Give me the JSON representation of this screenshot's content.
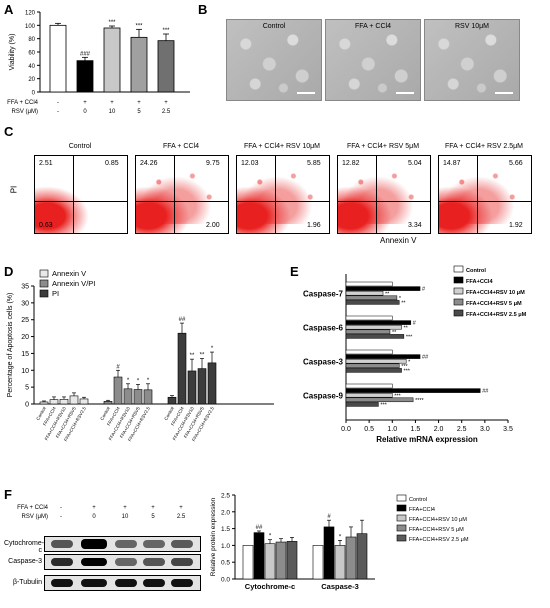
{
  "panels": {
    "A": "A",
    "B": "B",
    "C": "C",
    "D": "D",
    "E": "E",
    "F": "F"
  },
  "panel_a": {
    "ylabel": "Viability (%)",
    "yticks": [
      "0",
      "20",
      "40",
      "60",
      "80",
      "100",
      "120"
    ],
    "row1_label": "FFA + CCl4",
    "row2_label": "RSV (μM)",
    "row1_marks": [
      "-",
      "+",
      "+",
      "+",
      "+"
    ],
    "row2_marks": [
      "-",
      "0",
      "10",
      "5",
      "2.5"
    ],
    "sig": [
      "",
      "###",
      "***",
      "***",
      "***"
    ]
  },
  "panel_b": {
    "titles": [
      "Control",
      "FFA + CCl4",
      "RSV 10μM"
    ]
  },
  "panel_c": {
    "titles": [
      "Control",
      "FFA + CCl4",
      "FFA + CCl4+ RSV 10μM",
      "FFA + CCl4+ RSV 5μM",
      "FFA + CCl4+ RSV 2.5μM"
    ],
    "quadrants": [
      [
        "2.51",
        "0.85",
        "0.63",
        ""
      ],
      [
        "24.26",
        "9.75",
        "",
        "2.00"
      ],
      [
        "12.03",
        "5.85",
        "",
        "1.96"
      ],
      [
        "12.82",
        "5.04",
        "",
        "3.34"
      ],
      [
        "14.87",
        "5.66",
        "",
        "1.92"
      ]
    ],
    "ylabel": "PI",
    "xlabel": "Annexin V"
  },
  "panel_d": {
    "ylabel": "Percentage of Apoptosis cells (%)",
    "yticks": [
      "0",
      "5",
      "10",
      "15",
      "20",
      "25",
      "30",
      "35"
    ],
    "legend": [
      "Annexin V",
      "Annexin V/PI",
      "PI"
    ],
    "xlabels": [
      "Control",
      "FFA+CCl4",
      "FFA+CCl4+RSV10",
      "FFA+CCl4+RSV5",
      "FFA+CCl4+RSV2.5"
    ],
    "sig_mid": [
      "",
      "#",
      "*",
      "*",
      "*"
    ],
    "sig_pi": [
      "",
      "##",
      "**",
      "**",
      "*"
    ]
  },
  "panel_e": {
    "xlabel": "Relative mRNA expression",
    "xticks": [
      "0.0",
      "0.5",
      "1.0",
      "1.5",
      "2.0",
      "2.5",
      "3.0",
      "3.5"
    ],
    "legend": [
      "Control",
      "FFA+CCl4",
      "FFA+CCl4+RSV 10 μM",
      "FFA+CCl4+RSV 5 μM",
      "FFA+CCl4+RSV 2.5 μM"
    ],
    "sig": [
      [
        "",
        "#",
        "**",
        "*",
        "**"
      ],
      [
        "",
        "#",
        "**",
        "**",
        "***"
      ],
      [
        "",
        "##",
        "*",
        "***",
        "***"
      ],
      [
        "",
        "##",
        "***",
        "****",
        "***"
      ]
    ]
  },
  "panel_f": {
    "blot_header_row1": "FFA + CCl4",
    "blot_header_row2": "RSV (μM)",
    "row1_marks": [
      "-",
      "+",
      "+",
      "+",
      "+"
    ],
    "row2_marks": [
      "-",
      "0",
      "10",
      "5",
      "2.5"
    ],
    "blot_rows": [
      "Cytochrome-c",
      "Caspase-3",
      "β-Tubulin"
    ],
    "ylabel": "Relative protein expression",
    "yticks": [
      "0.0",
      "0.5",
      "1.0",
      "1.5",
      "2.0",
      "2.5"
    ],
    "legend": [
      "Control",
      "FFA+CCl4",
      "FFA+CCl4+RSV 10 μM",
      "FFA+CCl4+RSV 5 μM",
      "FFA+CCl4+RSV 2.5 μM"
    ],
    "sig": [
      [
        "",
        "##",
        "*",
        "",
        ""
      ],
      [
        "",
        "#",
        "*",
        "",
        ""
      ]
    ]
  },
  "chart_data": [
    {
      "type": "bar",
      "panel": "A",
      "categories": [
        "-/-",
        "+/0",
        "+/10",
        "+/5",
        "+/2.5"
      ],
      "values": [
        100,
        47,
        96,
        82,
        77
      ],
      "errors": [
        3,
        5,
        3,
        12,
        10
      ],
      "colors": [
        "#ffffff",
        "#000000",
        "#c8c8c8",
        "#a0a0a0",
        "#707070"
      ],
      "ylim": [
        0,
        120
      ],
      "ylabel": "Viability (%)"
    },
    {
      "type": "bar",
      "panel": "D",
      "categories": [
        "Control",
        "FFA+CCl4",
        "FFA+CCl4+RSV10",
        "FFA+CCl4+RSV5",
        "FFA+CCl4+RSV2.5"
      ],
      "series": [
        {
          "name": "Annexin V",
          "values": [
            0.6,
            1.3,
            1.4,
            2.4,
            1.5
          ],
          "errors": [
            0.3,
            0.8,
            0.7,
            0.9,
            0.5
          ]
        },
        {
          "name": "Annexin V/PI",
          "values": [
            0.8,
            8.0,
            4.5,
            4.3,
            4.2
          ],
          "errors": [
            0.3,
            2.0,
            1.5,
            1.5,
            1.8
          ]
        },
        {
          "name": "PI",
          "values": [
            2.0,
            21.0,
            9.8,
            10.5,
            12.2
          ],
          "errors": [
            0.5,
            3.0,
            3.5,
            3.0,
            3.2
          ]
        }
      ],
      "colors": [
        "#e8e8e8",
        "#8c8c8c",
        "#3c3c3c"
      ],
      "ylim": [
        0,
        35
      ],
      "ylabel": "Percentage of Apoptosis cells (%)"
    },
    {
      "type": "bar",
      "panel": "E",
      "orientation": "horizontal",
      "categories": [
        "Caspase-7",
        "Caspase-6",
        "Caspase-3",
        "Caspase-9"
      ],
      "series": [
        {
          "name": "Control",
          "values": [
            1.0,
            1.0,
            1.0,
            1.0
          ]
        },
        {
          "name": "FFA+CCl4",
          "values": [
            1.6,
            1.4,
            1.6,
            2.9
          ]
        },
        {
          "name": "FFA+CCl4+RSV 10 μM",
          "values": [
            0.8,
            1.2,
            1.3,
            1.0
          ]
        },
        {
          "name": "FFA+CCl4+RSV 5 μM",
          "values": [
            1.1,
            0.95,
            1.15,
            1.45
          ]
        },
        {
          "name": "FFA+CCl4+RSV 2.5 μM",
          "values": [
            1.15,
            1.25,
            1.2,
            0.7
          ]
        }
      ],
      "colors": [
        "#ffffff",
        "#000000",
        "#d0d0d0",
        "#8c8c8c",
        "#4a4a4a"
      ],
      "xlim": [
        0,
        3.5
      ],
      "xlabel": "Relative mRNA expression"
    },
    {
      "type": "bar",
      "panel": "F",
      "categories": [
        "Cytochrome-c",
        "Caspase-3"
      ],
      "series": [
        {
          "name": "Control",
          "values": [
            1.0,
            1.0
          ],
          "errors": [
            0,
            0
          ]
        },
        {
          "name": "FFA+CCl4",
          "values": [
            1.38,
            1.55
          ],
          "errors": [
            0.05,
            0.2
          ]
        },
        {
          "name": "FFA+CCl4+RSV 10 μM",
          "values": [
            1.05,
            1.0
          ],
          "errors": [
            0.12,
            0.15
          ]
        },
        {
          "name": "FFA+CCl4+RSV 5 μM",
          "values": [
            1.1,
            1.25
          ],
          "errors": [
            0.1,
            0.3
          ]
        },
        {
          "name": "FFA+CCl4+RSV 2.5 μM",
          "values": [
            1.12,
            1.35
          ],
          "errors": [
            0.12,
            0.4
          ]
        }
      ],
      "colors": [
        "#ffffff",
        "#000000",
        "#c8c8c8",
        "#8c8c8c",
        "#5a5a5a"
      ],
      "ylim": [
        0,
        2.5
      ],
      "ylabel": "Relative protein expression"
    }
  ]
}
